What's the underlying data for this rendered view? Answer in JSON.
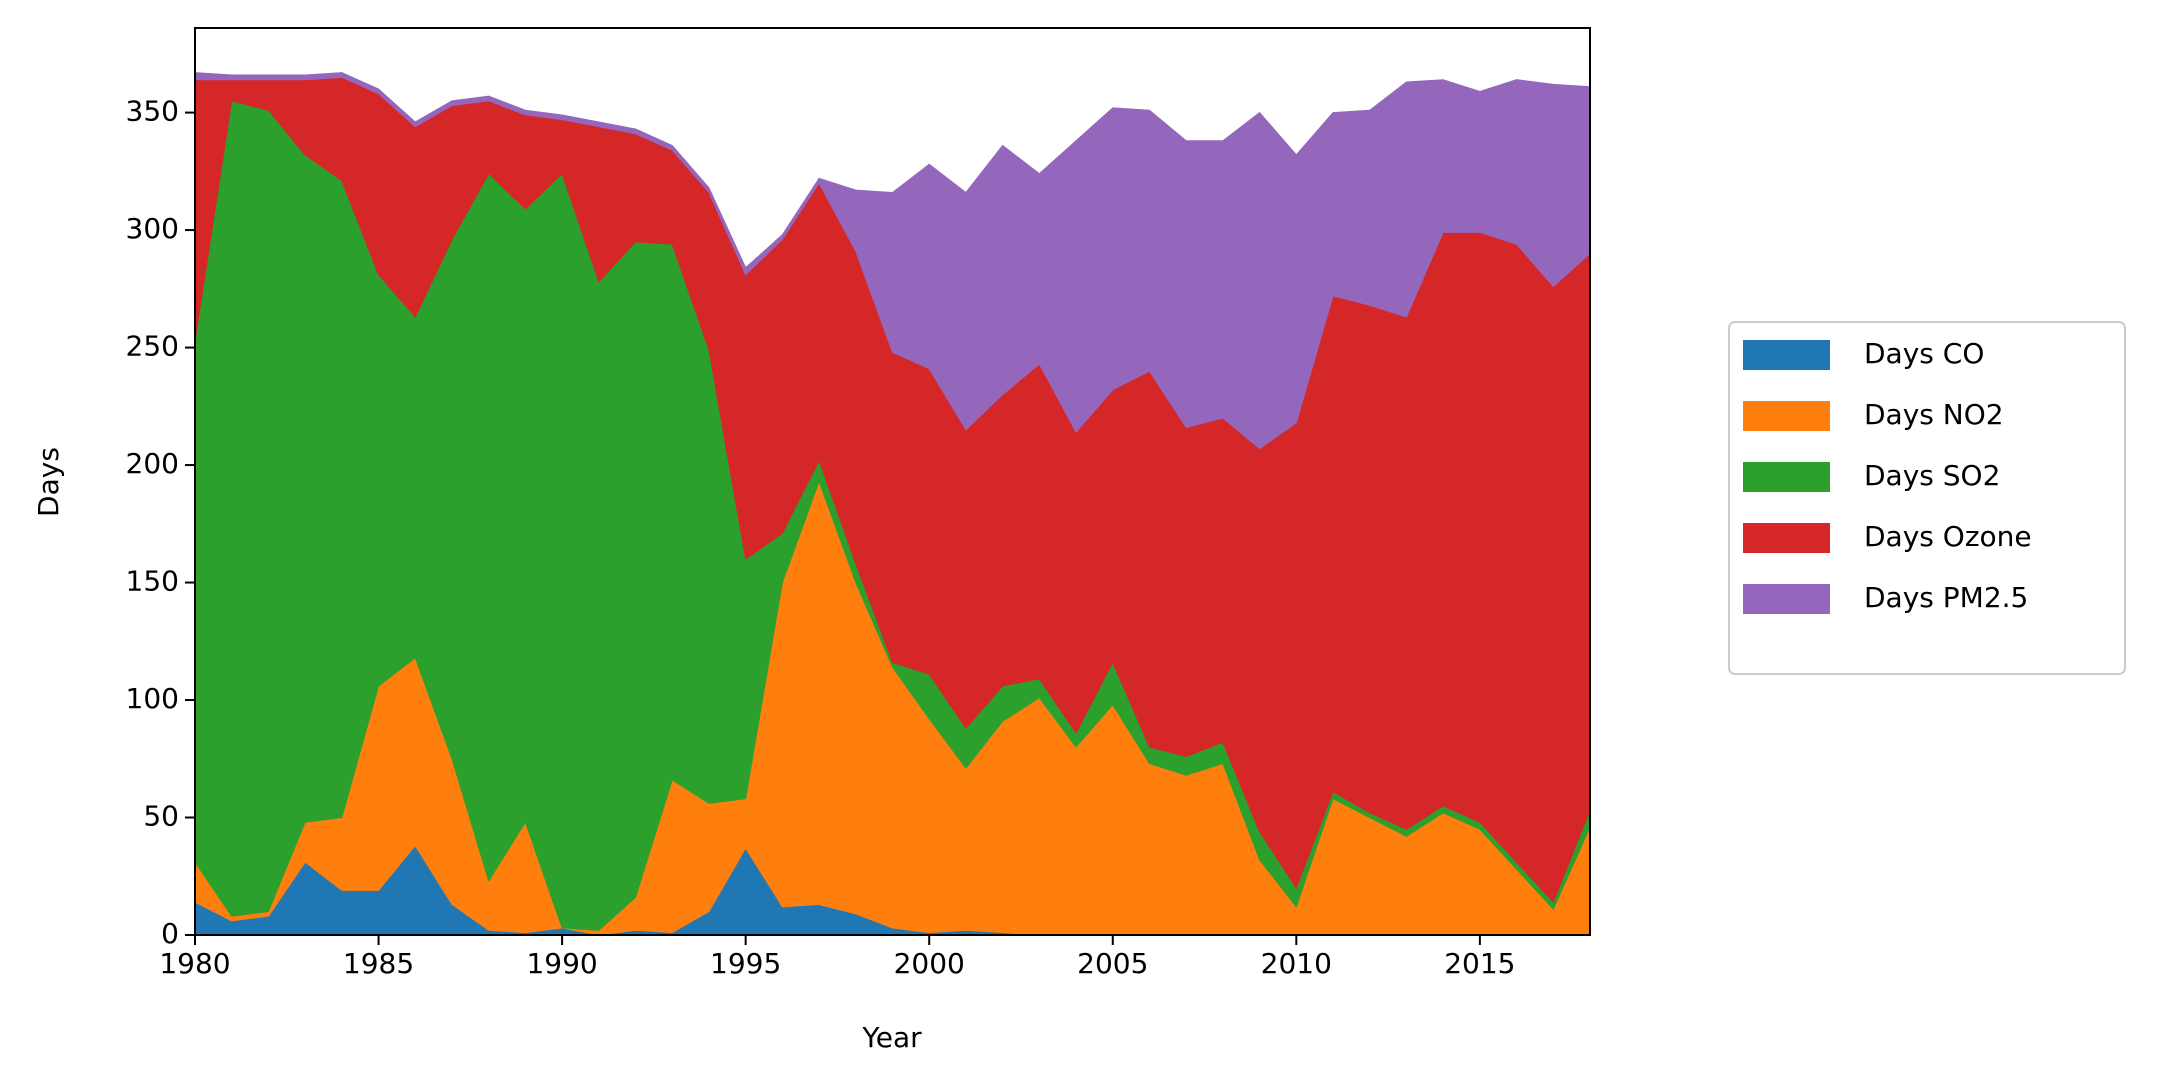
{
  "chart_data": {
    "type": "stackedarea",
    "x_label": "Year",
    "y_label": "Days",
    "x": [
      1980,
      1981,
      1982,
      1983,
      1984,
      1985,
      1986,
      1987,
      1988,
      1989,
      1990,
      1991,
      1992,
      1993,
      1994,
      1995,
      1996,
      1997,
      1998,
      1999,
      2000,
      2001,
      2002,
      2003,
      2004,
      2005,
      2006,
      2007,
      2008,
      2009,
      2010,
      2011,
      2012,
      2013,
      2014,
      2015,
      2016,
      2017,
      2018
    ],
    "xlim": [
      1980,
      2018
    ],
    "xticks": [
      1980,
      1985,
      1990,
      1995,
      2000,
      2005,
      2010,
      2015
    ],
    "ylim": [
      0,
      386
    ],
    "yticks": [
      0,
      50,
      100,
      150,
      200,
      250,
      300,
      350
    ],
    "legend": "right",
    "series": [
      {
        "name": "Days CO",
        "color": "#1f77b4",
        "values": [
          14,
          6,
          8,
          31,
          19,
          19,
          38,
          13,
          2,
          1,
          3,
          0,
          2,
          1,
          10,
          37,
          12,
          13,
          9,
          3,
          1,
          2,
          1,
          0,
          0,
          0,
          0,
          0,
          0,
          0,
          0,
          0,
          0,
          0,
          0,
          0,
          0,
          0,
          0
        ]
      },
      {
        "name": "Days NO2",
        "color": "#ff7f0e",
        "values": [
          17,
          2,
          2,
          17,
          31,
          87,
          80,
          62,
          21,
          47,
          0,
          2,
          14,
          65,
          46,
          21,
          138,
          180,
          141,
          111,
          91,
          69,
          90,
          101,
          80,
          98,
          73,
          68,
          73,
          32,
          12,
          58,
          50,
          42,
          52,
          45,
          28,
          11,
          46
        ]
      },
      {
        "name": "Days SO2",
        "color": "#2ca02c",
        "values": [
          222,
          347,
          341,
          284,
          271,
          175,
          145,
          221,
          301,
          261,
          321,
          276,
          279,
          228,
          193,
          102,
          21,
          9,
          8,
          2,
          19,
          17,
          15,
          8,
          6,
          18,
          7,
          8,
          9,
          12,
          8,
          3,
          2,
          3,
          3,
          3,
          3,
          3,
          7
        ]
      },
      {
        "name": "Days Ozone",
        "color": "#d62728",
        "values": [
          111,
          9,
          13,
          32,
          44,
          77,
          81,
          57,
          31,
          40,
          23,
          66,
          46,
          40,
          67,
          121,
          125,
          118,
          133,
          132,
          130,
          127,
          124,
          134,
          128,
          116,
          160,
          140,
          138,
          163,
          198,
          211,
          216,
          218,
          244,
          251,
          263,
          262,
          237
        ]
      },
      {
        "name": "Days PM2.5",
        "color": "#9467bd",
        "values": [
          3,
          2,
          2,
          2,
          2,
          2,
          2,
          2,
          2,
          2,
          2,
          2,
          2,
          2,
          2,
          3,
          2,
          2,
          26,
          68,
          87,
          101,
          106,
          81,
          124,
          120,
          111,
          122,
          118,
          143,
          114,
          78,
          83,
          100,
          65,
          60,
          70,
          86,
          71
        ]
      }
    ]
  }
}
